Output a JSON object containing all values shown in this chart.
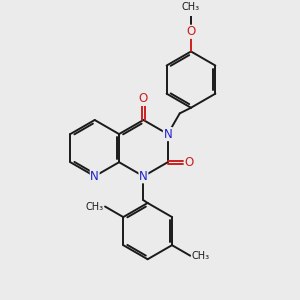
{
  "bg_color": "#ebebeb",
  "bond_color": "#1a1a1a",
  "N_color": "#2020cc",
  "O_color": "#cc2020",
  "line_width": 1.4,
  "font_size": 8.5,
  "xlim": [
    0,
    10
  ],
  "ylim": [
    0,
    10
  ]
}
